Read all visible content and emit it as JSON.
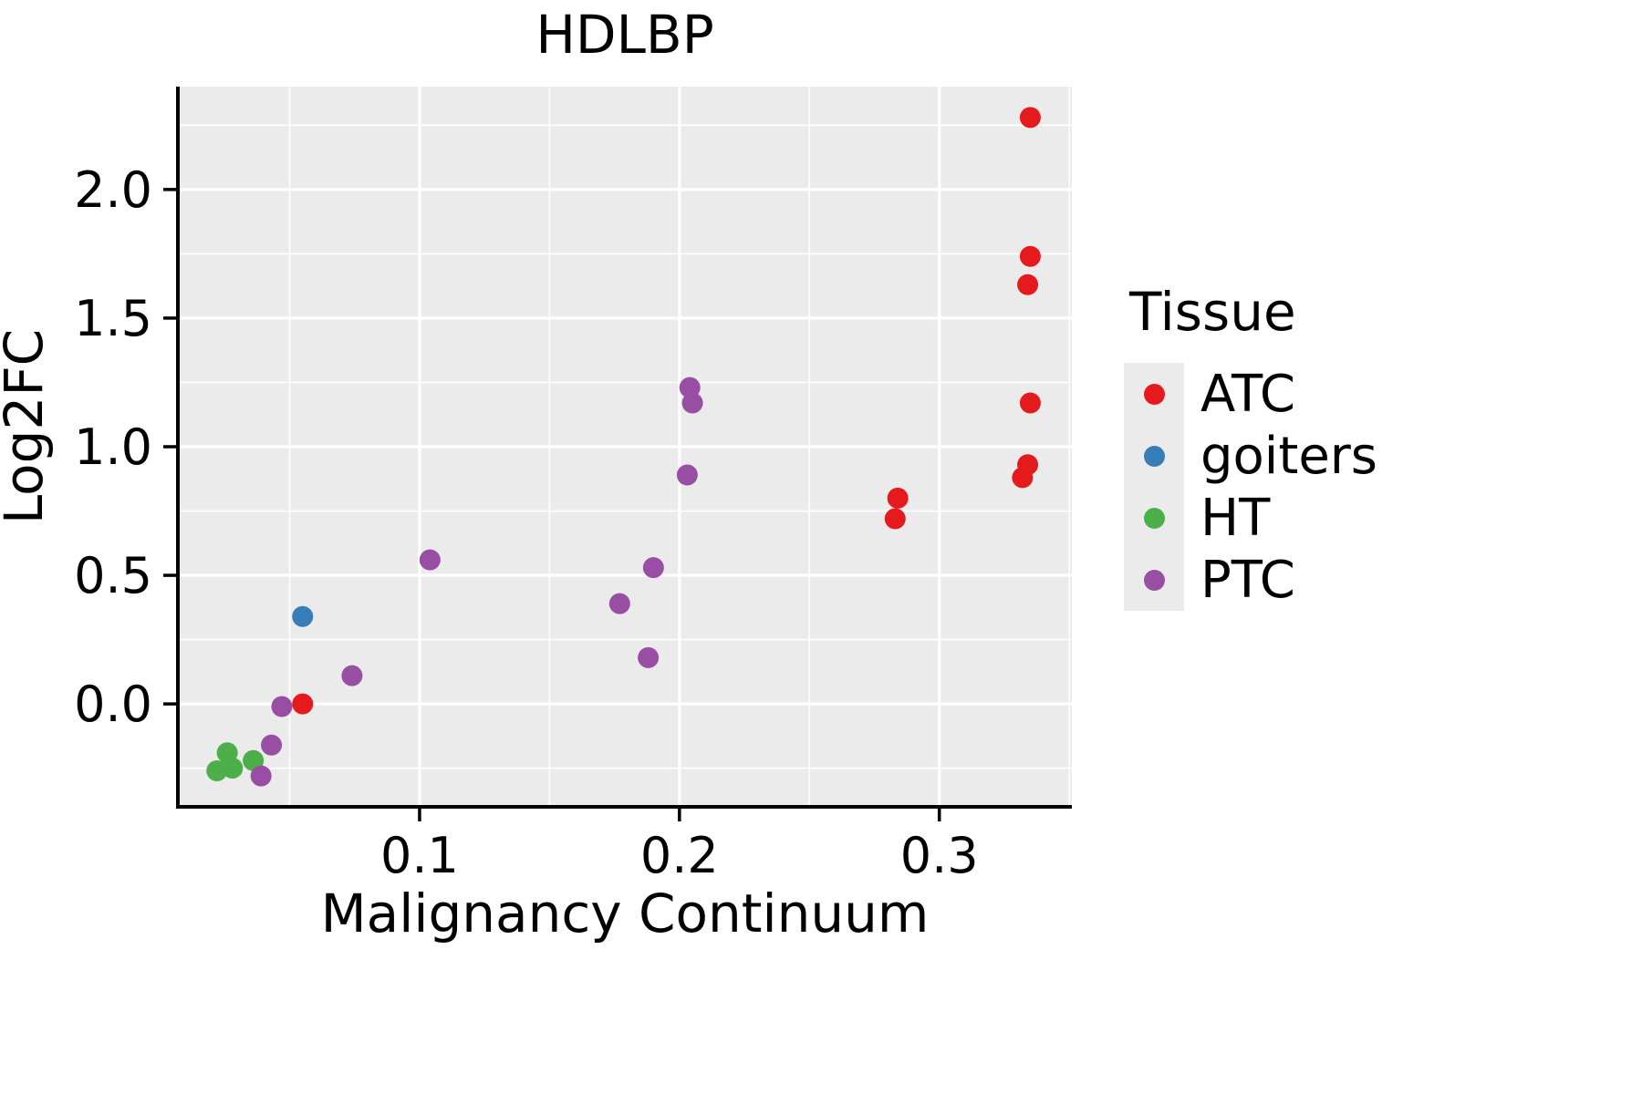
{
  "chart_data": {
    "type": "scatter",
    "title": "HDLBP",
    "xlabel": "Malignancy Continuum",
    "ylabel": "Log2FC",
    "legend_title": "Tissue",
    "legend_position": "right",
    "grid": true,
    "panel_background": "#ebebeb",
    "grid_color": "#ffffff",
    "axis_color": "#000000",
    "tick_text_color": "#1a1a1a",
    "xlim": [
      0.007,
      0.351
    ],
    "ylim": [
      -0.4,
      2.4
    ],
    "xticks": [
      0.1,
      0.2,
      0.3
    ],
    "yticks": [
      0.0,
      0.5,
      1.0,
      1.5,
      2.0
    ],
    "xticks_minor": [
      0.05,
      0.15,
      0.25,
      0.35
    ],
    "yticks_minor": [
      -0.25,
      0.25,
      0.75,
      1.25,
      1.75,
      2.25
    ],
    "series": [
      {
        "name": "ATC",
        "color": "#e41a1c",
        "points": [
          [
            0.335,
            2.28
          ],
          [
            0.335,
            1.74
          ],
          [
            0.334,
            1.63
          ],
          [
            0.335,
            1.17
          ],
          [
            0.334,
            0.93
          ],
          [
            0.332,
            0.88
          ],
          [
            0.284,
            0.8
          ],
          [
            0.283,
            0.72
          ],
          [
            0.055,
            0.0
          ]
        ]
      },
      {
        "name": "goiters",
        "color": "#377eb8",
        "points": [
          [
            0.055,
            0.34
          ]
        ]
      },
      {
        "name": "HT",
        "color": "#4daf4a",
        "points": [
          [
            0.022,
            -0.26
          ],
          [
            0.026,
            -0.19
          ],
          [
            0.028,
            -0.25
          ],
          [
            0.036,
            -0.22
          ]
        ]
      },
      {
        "name": "PTC",
        "color": "#984ea3",
        "points": [
          [
            0.039,
            -0.28
          ],
          [
            0.043,
            -0.16
          ],
          [
            0.047,
            -0.01
          ],
          [
            0.074,
            0.11
          ],
          [
            0.104,
            0.56
          ],
          [
            0.177,
            0.39
          ],
          [
            0.188,
            0.18
          ],
          [
            0.19,
            0.53
          ],
          [
            0.203,
            0.89
          ],
          [
            0.204,
            1.23
          ],
          [
            0.205,
            1.17
          ]
        ]
      }
    ]
  }
}
